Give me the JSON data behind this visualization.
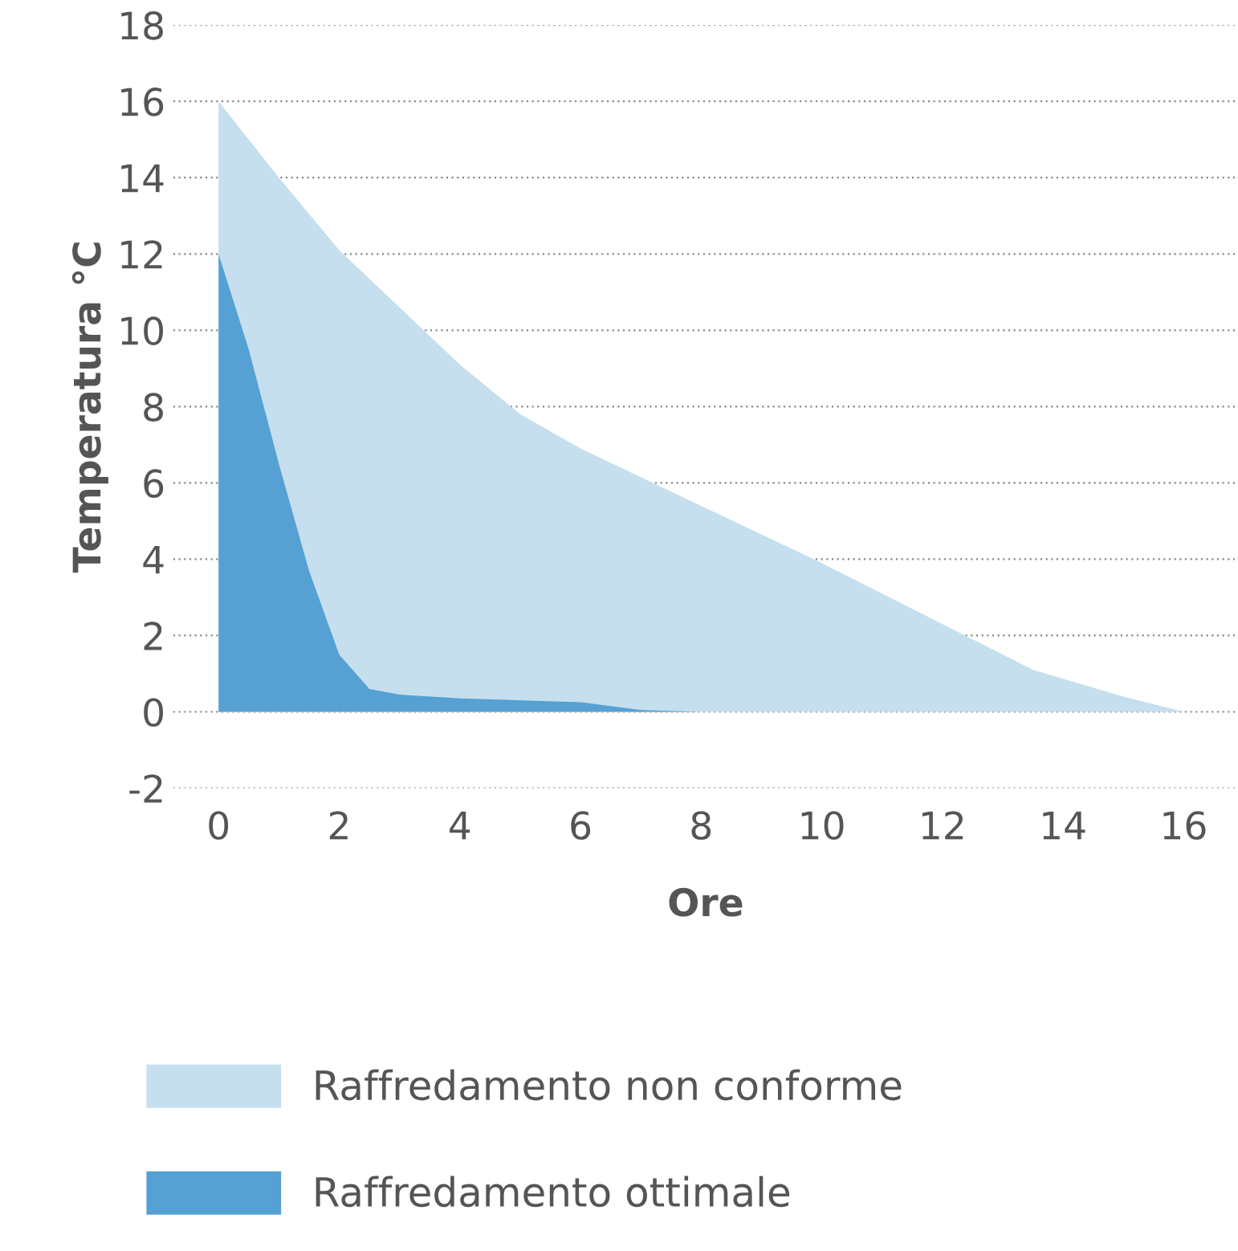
{
  "chart_data": {
    "type": "area",
    "xlabel": "Ore",
    "ylabel": "Temperatura °C",
    "xlim": [
      -0.75,
      16.9
    ],
    "ylim": [
      -2,
      18
    ],
    "xticks": [
      0,
      2,
      4,
      6,
      8,
      10,
      12,
      14,
      16
    ],
    "yticks": [
      -2,
      0,
      2,
      4,
      6,
      8,
      10,
      12,
      14,
      16,
      18
    ],
    "grid": "y",
    "legend": "bottom",
    "series": [
      {
        "name": "Raffredamento non conforme",
        "color": "#c5dfee",
        "x": [
          0,
          1,
          2,
          3,
          4,
          5,
          6,
          8,
          10,
          12,
          13.5,
          15,
          16
        ],
        "values": [
          16,
          14,
          12.1,
          10.6,
          9.1,
          7.8,
          6.9,
          5.4,
          3.9,
          2.3,
          1.1,
          0.4,
          0
        ]
      },
      {
        "name": "Raffredamento ottimale",
        "color": "#56a1d3",
        "x": [
          0,
          0.5,
          1,
          1.5,
          2,
          2.5,
          3,
          4,
          6,
          7,
          8
        ],
        "values": [
          12,
          9.5,
          6.5,
          3.7,
          1.5,
          0.6,
          0.45,
          0.35,
          0.25,
          0.05,
          0
        ]
      }
    ]
  }
}
